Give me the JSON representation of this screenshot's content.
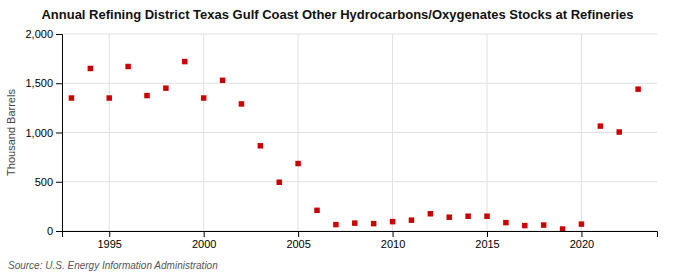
{
  "chart_data": {
    "type": "scatter",
    "title": "Annual Refining District Texas Gulf Coast Other Hydrocarbons/Oxygenates Stocks at Refineries",
    "ylabel": "Thousand Barrels",
    "source": "Source: U.S. Energy Information Administration",
    "x": [
      1993,
      1994,
      1995,
      1996,
      1997,
      1998,
      1999,
      2000,
      2001,
      2002,
      2003,
      2004,
      2005,
      2006,
      2007,
      2008,
      2009,
      2010,
      2011,
      2012,
      2013,
      2014,
      2015,
      2016,
      2017,
      2018,
      2019,
      2020,
      2021,
      2022,
      2023
    ],
    "values": [
      1350,
      1650,
      1350,
      1670,
      1375,
      1450,
      1720,
      1350,
      1530,
      1290,
      865,
      495,
      685,
      210,
      65,
      80,
      75,
      95,
      110,
      175,
      140,
      150,
      150,
      85,
      55,
      60,
      20,
      70,
      1065,
      1005,
      1440
    ],
    "color": "#cc0000",
    "marker": "square",
    "xlim": [
      1992.5,
      2024
    ],
    "xticks": [
      1995,
      2000,
      2005,
      2010,
      2015,
      2020
    ],
    "ylim": [
      0,
      2000
    ],
    "yticks": [
      0,
      500,
      {
        "value": 1000,
        "label": "1,000"
      },
      {
        "value": 1500,
        "label": "1,500"
      },
      {
        "value": 2000,
        "label": "2,000"
      }
    ],
    "grid": true
  }
}
